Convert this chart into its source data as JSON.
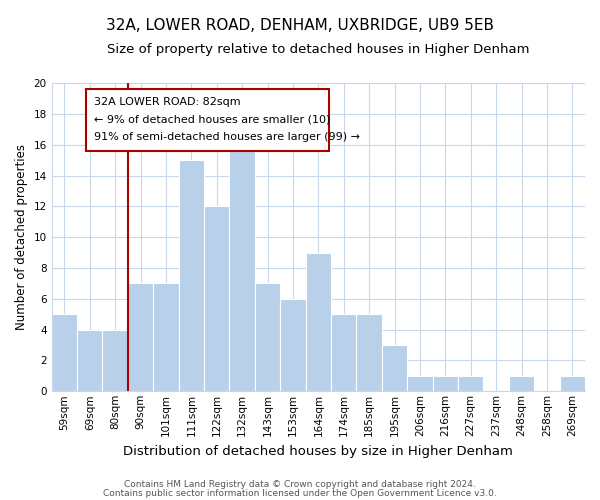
{
  "title": "32A, LOWER ROAD, DENHAM, UXBRIDGE, UB9 5EB",
  "subtitle": "Size of property relative to detached houses in Higher Denham",
  "xlabel": "Distribution of detached houses by size in Higher Denham",
  "ylabel": "Number of detached properties",
  "bin_labels": [
    "59sqm",
    "69sqm",
    "80sqm",
    "90sqm",
    "101sqm",
    "111sqm",
    "122sqm",
    "132sqm",
    "143sqm",
    "153sqm",
    "164sqm",
    "174sqm",
    "185sqm",
    "195sqm",
    "206sqm",
    "216sqm",
    "227sqm",
    "237sqm",
    "248sqm",
    "258sqm",
    "269sqm"
  ],
  "bar_values": [
    5,
    4,
    4,
    7,
    7,
    15,
    12,
    16,
    7,
    6,
    9,
    5,
    5,
    3,
    1,
    1,
    1,
    0,
    1,
    0,
    1
  ],
  "bar_color": "#b8d0ea",
  "bar_edge_color": "#ffffff",
  "annotation_box_text_line1": "32A LOWER ROAD: 82sqm",
  "annotation_box_text_line2": "← 9% of detached houses are smaller (10)",
  "annotation_box_text_line3": "91% of semi-detached houses are larger (99) →",
  "ylim": [
    0,
    20
  ],
  "yticks": [
    0,
    2,
    4,
    6,
    8,
    10,
    12,
    14,
    16,
    18,
    20
  ],
  "footer_line1": "Contains HM Land Registry data © Crown copyright and database right 2024.",
  "footer_line2": "Contains public sector information licensed under the Open Government Licence v3.0.",
  "background_color": "#ffffff",
  "grid_color": "#c8d8e8",
  "title_fontsize": 11,
  "subtitle_fontsize": 9.5,
  "xlabel_fontsize": 9.5,
  "ylabel_fontsize": 8.5,
  "tick_fontsize": 7.5,
  "footer_fontsize": 6.5,
  "annotation_fontsize": 8,
  "red_line_color": "#aa0000"
}
